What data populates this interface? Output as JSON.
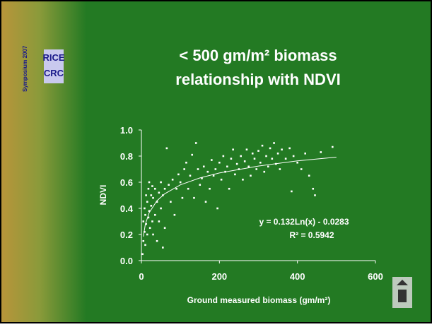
{
  "logo": {
    "line1": "RICE",
    "line2": "CRC",
    "side": "Symposium 2007"
  },
  "chart_data": {
    "type": "scatter",
    "title": "< 500 gm/m² biomass",
    "subtitle": "relationship with NDVI",
    "x_label": "Ground measured biomass (gm/m²)",
    "y_label": "NDVI",
    "annotations": [
      "y = 0.132Ln(x) - 0.0283",
      "R² = 0.5942"
    ],
    "color": "#ffffff",
    "xlim": [
      0,
      600
    ],
    "xticks": [
      0,
      200,
      400,
      600
    ],
    "ylim": [
      0,
      1
    ],
    "yticks": [
      {
        "value": 0,
        "label": "0.0"
      },
      0.2,
      0.4,
      0.6,
      0.8,
      {
        "value": 1,
        "label": "1.0"
      }
    ],
    "x": [
      3,
      5,
      5,
      8,
      8,
      10,
      10,
      12,
      12,
      15,
      15,
      18,
      18,
      20,
      20,
      22,
      25,
      25,
      28,
      28,
      30,
      30,
      35,
      35,
      40,
      40,
      45,
      45,
      50,
      50,
      55,
      55,
      60,
      60,
      65,
      70,
      75,
      80,
      85,
      90,
      95,
      100,
      105,
      110,
      115,
      120,
      125,
      130,
      135,
      140,
      145,
      150,
      155,
      160,
      165,
      170,
      175,
      180,
      185,
      190,
      195,
      200,
      205,
      210,
      215,
      220,
      225,
      230,
      235,
      240,
      245,
      250,
      255,
      260,
      265,
      270,
      275,
      280,
      285,
      290,
      295,
      300,
      305,
      310,
      315,
      320,
      325,
      330,
      335,
      340,
      345,
      350,
      355,
      360,
      370,
      380,
      385,
      390,
      400,
      410,
      420,
      430,
      440,
      445,
      460,
      490
    ],
    "values": [
      0.05,
      0.15,
      0.3,
      0.22,
      0.4,
      0.12,
      0.35,
      0.5,
      0.28,
      0.45,
      0.2,
      0.55,
      0.33,
      0.6,
      0.38,
      0.25,
      0.5,
      0.42,
      0.57,
      0.3,
      0.2,
      0.48,
      0.55,
      0.35,
      0.15,
      0.45,
      0.52,
      0.3,
      0.6,
      0.4,
      0.1,
      0.5,
      0.55,
      0.25,
      0.86,
      0.58,
      0.45,
      0.62,
      0.35,
      0.55,
      0.66,
      0.6,
      0.48,
      0.7,
      0.75,
      0.55,
      0.65,
      0.81,
      0.48,
      0.9,
      0.7,
      0.58,
      0.63,
      0.72,
      0.45,
      0.68,
      0.55,
      0.77,
      0.65,
      0.7,
      0.4,
      0.75,
      0.62,
      0.8,
      0.68,
      0.72,
      0.55,
      0.78,
      0.85,
      0.66,
      0.74,
      0.7,
      0.8,
      0.62,
      0.76,
      0.85,
      0.72,
      0.65,
      0.82,
      0.78,
      0.7,
      0.84,
      0.75,
      0.88,
      0.68,
      0.8,
      0.72,
      0.86,
      0.78,
      0.9,
      0.74,
      0.82,
      0.7,
      0.85,
      0.78,
      0.86,
      0.53,
      0.8,
      0.75,
      0.7,
      0.82,
      0.65,
      0.55,
      0.5,
      0.83,
      0.87
    ],
    "trendline": {
      "x": [
        5,
        10,
        20,
        40,
        60,
        100,
        150,
        200,
        300,
        400,
        500
      ],
      "values": [
        0.184,
        0.276,
        0.367,
        0.459,
        0.512,
        0.58,
        0.633,
        0.671,
        0.724,
        0.763,
        0.792
      ]
    }
  }
}
